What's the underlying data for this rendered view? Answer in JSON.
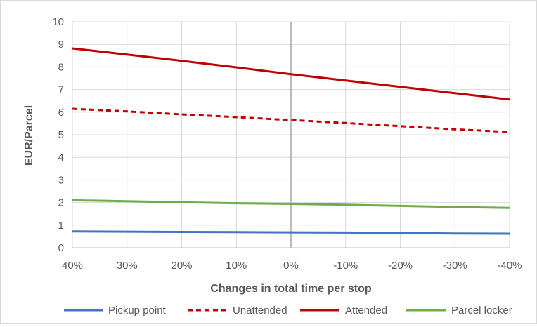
{
  "chart_data": {
    "type": "line",
    "title": "",
    "xlabel": "Changes in total time per stop",
    "ylabel": "EUR/Parcel",
    "categories": [
      "40%",
      "30%",
      "20%",
      "10%",
      "0%",
      "-10%",
      "-20%",
      "-30%",
      "-40%"
    ],
    "ylim": [
      0,
      10
    ],
    "yticks": [
      0,
      1,
      2,
      3,
      4,
      5,
      6,
      7,
      8,
      9,
      10
    ],
    "grid": true,
    "legend_position": "bottom",
    "series": [
      {
        "name": "Pickup point",
        "color": "#4472c4",
        "dashed": false,
        "values": [
          0.72,
          0.71,
          0.7,
          0.69,
          0.68,
          0.67,
          0.65,
          0.63,
          0.62
        ]
      },
      {
        "name": "Unattended",
        "color": "#c00000",
        "dashed": true,
        "values": [
          6.15,
          6.03,
          5.9,
          5.78,
          5.65,
          5.52,
          5.38,
          5.24,
          5.12
        ]
      },
      {
        "name": "Attended",
        "color": "#c00000",
        "dashed": false,
        "values": [
          8.82,
          8.55,
          8.27,
          7.98,
          7.68,
          7.4,
          7.12,
          6.84,
          6.56
        ]
      },
      {
        "name": "Parcel locker",
        "color": "#70ad47",
        "dashed": false,
        "values": [
          2.1,
          2.06,
          2.01,
          1.97,
          1.94,
          1.9,
          1.85,
          1.8,
          1.76
        ]
      }
    ]
  }
}
